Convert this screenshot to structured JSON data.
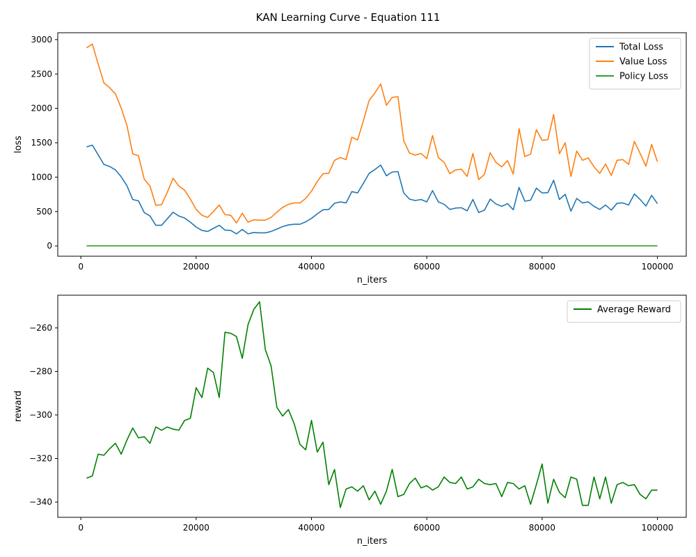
{
  "figure": {
    "title": "KAN Learning Curve - Equation 111"
  },
  "chart_data": [
    {
      "type": "line",
      "xlabel": "n_iters",
      "ylabel": "loss",
      "xlim": [
        -4000,
        105000
      ],
      "ylim": [
        -150,
        3100
      ],
      "xticks": [
        0,
        20000,
        40000,
        60000,
        80000,
        100000
      ],
      "yticks": [
        0,
        500,
        1000,
        1500,
        2000,
        2500,
        3000
      ],
      "legend_position": "top-right",
      "grid": false,
      "x": [
        1000,
        2000,
        3000,
        4000,
        5000,
        6000,
        7000,
        8000,
        9000,
        10000,
        11000,
        12000,
        13000,
        14000,
        15000,
        16000,
        17000,
        18000,
        19000,
        20000,
        21000,
        22000,
        23000,
        24000,
        25000,
        26000,
        27000,
        28000,
        29000,
        30000,
        31000,
        32000,
        33000,
        34000,
        35000,
        36000,
        37000,
        38000,
        39000,
        40000,
        41000,
        42000,
        43000,
        44000,
        45000,
        46000,
        47000,
        48000,
        49000,
        50000,
        51000,
        52000,
        53000,
        54000,
        55000,
        56000,
        57000,
        58000,
        59000,
        60000,
        61000,
        62000,
        63000,
        64000,
        65000,
        66000,
        67000,
        68000,
        69000,
        70000,
        71000,
        72000,
        73000,
        74000,
        75000,
        76000,
        77000,
        78000,
        79000,
        80000,
        81000,
        82000,
        83000,
        84000,
        85000,
        86000,
        87000,
        88000,
        89000,
        90000,
        91000,
        92000,
        93000,
        94000,
        95000,
        96000,
        97000,
        98000,
        99000,
        100000
      ],
      "series": [
        {
          "name": "Total Loss",
          "color": "#1f77b4",
          "values": [
            1440,
            1465,
            1325,
            1185,
            1155,
            1105,
            1005,
            875,
            675,
            655,
            485,
            435,
            300,
            300,
            395,
            490,
            435,
            405,
            345,
            275,
            225,
            210,
            255,
            300,
            230,
            225,
            175,
            240,
            175,
            195,
            190,
            190,
            210,
            245,
            280,
            305,
            315,
            315,
            350,
            400,
            465,
            525,
            530,
            620,
            640,
            625,
            790,
            770,
            910,
            1055,
            1110,
            1175,
            1020,
            1075,
            1080,
            770,
            680,
            660,
            675,
            640,
            805,
            640,
            605,
            530,
            550,
            555,
            510,
            675,
            485,
            520,
            680,
            610,
            575,
            615,
            525,
            850,
            650,
            665,
            840,
            770,
            775,
            955,
            675,
            750,
            505,
            690,
            625,
            640,
            575,
            530,
            595,
            520,
            620,
            625,
            595,
            755,
            675,
            580,
            735,
            615
          ]
        },
        {
          "name": "Value Loss",
          "color": "#ff7f0e",
          "values": [
            2880,
            2935,
            2645,
            2370,
            2300,
            2210,
            2005,
            1750,
            1340,
            1310,
            970,
            870,
            590,
            600,
            780,
            985,
            870,
            810,
            680,
            530,
            445,
            415,
            500,
            595,
            455,
            445,
            335,
            475,
            345,
            380,
            375,
            375,
            415,
            490,
            560,
            605,
            625,
            625,
            690,
            795,
            935,
            1050,
            1055,
            1245,
            1285,
            1255,
            1580,
            1540,
            1820,
            2115,
            2225,
            2355,
            2045,
            2160,
            2170,
            1530,
            1350,
            1320,
            1345,
            1270,
            1605,
            1285,
            1215,
            1050,
            1105,
            1115,
            1010,
            1345,
            965,
            1040,
            1355,
            1215,
            1150,
            1240,
            1045,
            1705,
            1300,
            1335,
            1690,
            1535,
            1545,
            1910,
            1340,
            1500,
            1010,
            1380,
            1245,
            1280,
            1150,
            1055,
            1190,
            1025,
            1245,
            1255,
            1185,
            1520,
            1345,
            1160,
            1475,
            1225
          ]
        },
        {
          "name": "Policy Loss",
          "color": "#2ca02c",
          "values": [
            1,
            1,
            1,
            1,
            1,
            1,
            1,
            1,
            1,
            1,
            1,
            1,
            1,
            1,
            1,
            1,
            1,
            1,
            1,
            1,
            1,
            1,
            1,
            1,
            1,
            1,
            1,
            1,
            1,
            1,
            1,
            1,
            1,
            1,
            1,
            1,
            1,
            1,
            1,
            1,
            1,
            1,
            1,
            1,
            1,
            1,
            1,
            1,
            1,
            1,
            1,
            1,
            1,
            1,
            1,
            1,
            1,
            1,
            1,
            1,
            1,
            1,
            1,
            1,
            1,
            1,
            1,
            1,
            1,
            1,
            1,
            1,
            1,
            1,
            1,
            1,
            1,
            1,
            1,
            1,
            1,
            1,
            1,
            1,
            1,
            1,
            1,
            1,
            1,
            1,
            1,
            1,
            1,
            1,
            1,
            1,
            1,
            1,
            1,
            1
          ]
        }
      ]
    },
    {
      "type": "line",
      "xlabel": "n_iters",
      "ylabel": "reward",
      "xlim": [
        -4000,
        105000
      ],
      "ylim": [
        -347,
        -245
      ],
      "xticks": [
        0,
        20000,
        40000,
        60000,
        80000,
        100000
      ],
      "yticks": [
        -340,
        -320,
        -300,
        -280,
        -260
      ],
      "legend_position": "top-right",
      "grid": false,
      "x": [
        1000,
        2000,
        3000,
        4000,
        5000,
        6000,
        7000,
        8000,
        9000,
        10000,
        11000,
        12000,
        13000,
        14000,
        15000,
        16000,
        17000,
        18000,
        19000,
        20000,
        21000,
        22000,
        23000,
        24000,
        25000,
        26000,
        27000,
        28000,
        29000,
        30000,
        31000,
        32000,
        33000,
        34000,
        35000,
        36000,
        37000,
        38000,
        39000,
        40000,
        41000,
        42000,
        43000,
        44000,
        45000,
        46000,
        47000,
        48000,
        49000,
        50000,
        51000,
        52000,
        53000,
        54000,
        55000,
        56000,
        57000,
        58000,
        59000,
        60000,
        61000,
        62000,
        63000,
        64000,
        65000,
        66000,
        67000,
        68000,
        69000,
        70000,
        71000,
        72000,
        73000,
        74000,
        75000,
        76000,
        77000,
        78000,
        79000,
        80000,
        81000,
        82000,
        83000,
        84000,
        85000,
        86000,
        87000,
        88000,
        89000,
        90000,
        91000,
        92000,
        93000,
        94000,
        95000,
        96000,
        97000,
        98000,
        99000,
        100000
      ],
      "series": [
        {
          "name": "Average Reward",
          "color": "#008000",
          "values": [
            -329,
            -328,
            -318,
            -318.5,
            -315.5,
            -313,
            -318,
            -311.5,
            -306,
            -310.5,
            -310,
            -313,
            -305.5,
            -307,
            -305.5,
            -306.5,
            -307,
            -302.5,
            -301.5,
            -287.5,
            -292,
            -278.5,
            -280.5,
            -292,
            -262,
            -262.5,
            -264,
            -274,
            -258.5,
            -251.5,
            -248,
            -270,
            -277.5,
            -296.5,
            -300.5,
            -297.5,
            -304,
            -313.5,
            -316,
            -302.5,
            -317,
            -312.5,
            -332,
            -325,
            -342.5,
            -334,
            -333,
            -335,
            -332.5,
            -339,
            -335,
            -341,
            -335,
            -325,
            -337.5,
            -336.5,
            -331.5,
            -329,
            -333.5,
            -332.5,
            -334.5,
            -333,
            -328.5,
            -331,
            -331.5,
            -328.5,
            -334,
            -333,
            -329.5,
            -331.5,
            -332,
            -331.5,
            -337.5,
            -331,
            -331.5,
            -334,
            -332.5,
            -341,
            -332,
            -322.5,
            -340.5,
            -329.5,
            -335.5,
            -338,
            -328.5,
            -329.5,
            -341.5,
            -341.5,
            -328.5,
            -338.5,
            -328.5,
            -340.5,
            -332,
            -331,
            -332.5,
            -332,
            -336.5,
            -338.5,
            -334.5,
            -334.5
          ]
        }
      ]
    }
  ]
}
